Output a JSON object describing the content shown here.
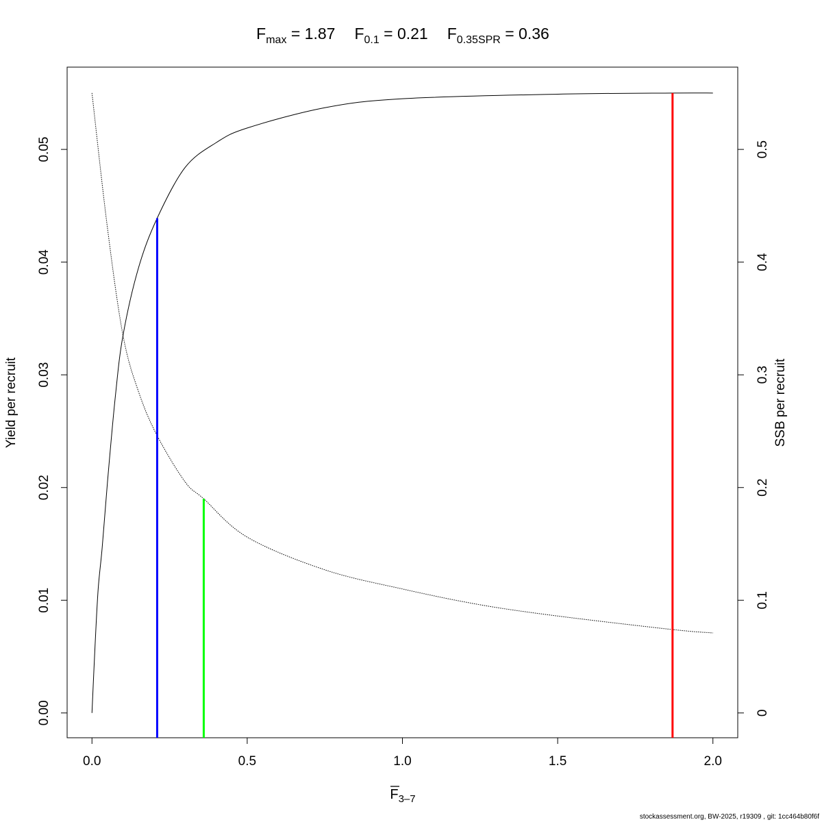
{
  "chart_data": {
    "type": "line",
    "title": {
      "parts": [
        {
          "base": "F",
          "sub": "max",
          "rest": " = 1.87"
        },
        {
          "base": "F",
          "sub": "0.1",
          "rest": " = 0.21"
        },
        {
          "base": "F",
          "sub": "0.35SPR",
          "rest": " = 0.36"
        }
      ]
    },
    "xlabel": {
      "base": "F",
      "sub": "3–7"
    },
    "ylabel": "Yield per recruit",
    "y2label": "SSB per recruit",
    "xlim": [
      -0.08,
      2.08
    ],
    "ylim": [
      -0.0022,
      0.0573
    ],
    "y2lim": [
      -0.022,
      0.573
    ],
    "x_ticks": [
      "0.0",
      "0.5",
      "1.0",
      "1.5",
      "2.0"
    ],
    "y_ticks": [
      "0.00",
      "0.01",
      "0.02",
      "0.03",
      "0.04",
      "0.05"
    ],
    "y2_ticks": [
      "0",
      "0.1",
      "0.2",
      "0.3",
      "0.4",
      "0.5"
    ],
    "grid": false,
    "series": [
      {
        "axis": "left",
        "style": "solid",
        "color": "#000000",
        "x": [
          0,
          0.01,
          0.02,
          0.033,
          0.05,
          0.075,
          0.1,
          0.15,
          0.21,
          0.3,
          0.4,
          0.5,
          0.75,
          1.0,
          1.5,
          1.87,
          2.0
        ],
        "y": [
          0,
          0.006,
          0.011,
          0.0147,
          0.0205,
          0.028,
          0.0335,
          0.0395,
          0.0439,
          0.0484,
          0.0506,
          0.0519,
          0.0537,
          0.0545,
          0.0549,
          0.055,
          0.055
        ]
      },
      {
        "axis": "right",
        "style": "dotted",
        "color": "#000000",
        "x": [
          0,
          0.05,
          0.1,
          0.15,
          0.21,
          0.3,
          0.36,
          0.5,
          0.75,
          1.0,
          1.25,
          1.5,
          1.87,
          2.0
        ],
        "y": [
          0.55,
          0.43,
          0.335,
          0.285,
          0.246,
          0.205,
          0.19,
          0.156,
          0.127,
          0.11,
          0.096,
          0.086,
          0.074,
          0.071
        ]
      }
    ],
    "reference_lines": [
      {
        "name": "Fmax",
        "x": 1.87,
        "axis": "left",
        "top": 0.055,
        "color": "#ff0000"
      },
      {
        "name": "F0.1",
        "x": 0.21,
        "axis": "left",
        "top": 0.0439,
        "color": "#0000ff"
      },
      {
        "name": "F0.35SPR",
        "x": 0.36,
        "axis": "right",
        "top": 0.19,
        "color": "#00ff00"
      }
    ]
  },
  "footer": "stockassessment.org, BW-2025, r19309 , git: 1cc464b80f6f"
}
